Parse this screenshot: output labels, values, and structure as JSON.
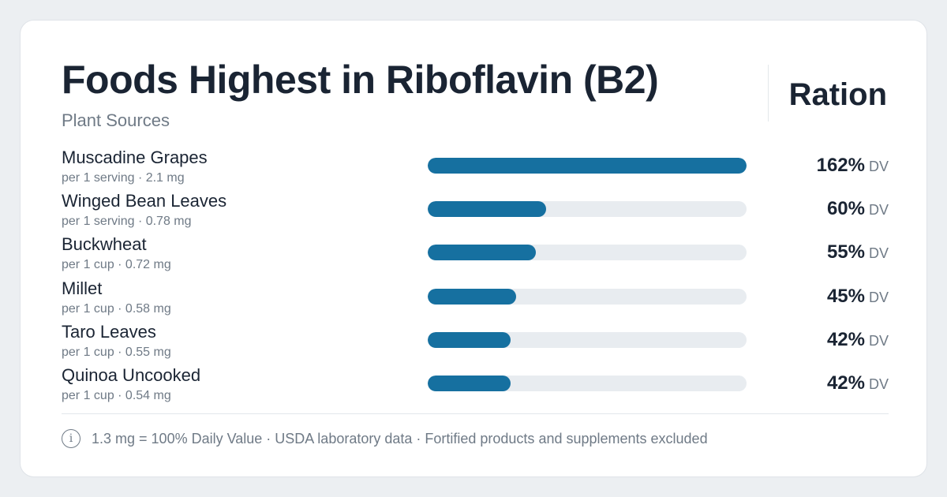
{
  "header": {
    "title": "Foods Highest in Riboflavin (B2)",
    "subtitle": "Plant Sources",
    "brand": "Ration"
  },
  "colors": {
    "bar_fill": "#1670a0",
    "bar_track": "#e8ecf0",
    "background": "#eceff2",
    "card": "#ffffff"
  },
  "footer": {
    "icon": "info-icon",
    "text": "1.3 mg = 100% Daily Value · USDA laboratory data · Fortified products and supplements excluded"
  },
  "chart_data": {
    "type": "bar",
    "orientation": "horizontal",
    "unit": "DV",
    "max_value": 162,
    "categories": [
      "Muscadine Grapes",
      "Winged Bean Leaves",
      "Buckwheat",
      "Millet",
      "Taro Leaves",
      "Quinoa Uncooked"
    ],
    "details": [
      "per 1 serving · 2.1 mg",
      "per 1 serving · 0.78 mg",
      "per 1 cup · 0.72 mg",
      "per 1 cup · 0.58 mg",
      "per 1 cup · 0.55 mg",
      "per 1 cup · 0.54 mg"
    ],
    "values": [
      162,
      60,
      55,
      45,
      42,
      42
    ],
    "labels": [
      "162%",
      "60%",
      "55%",
      "45%",
      "42%",
      "42%"
    ]
  }
}
